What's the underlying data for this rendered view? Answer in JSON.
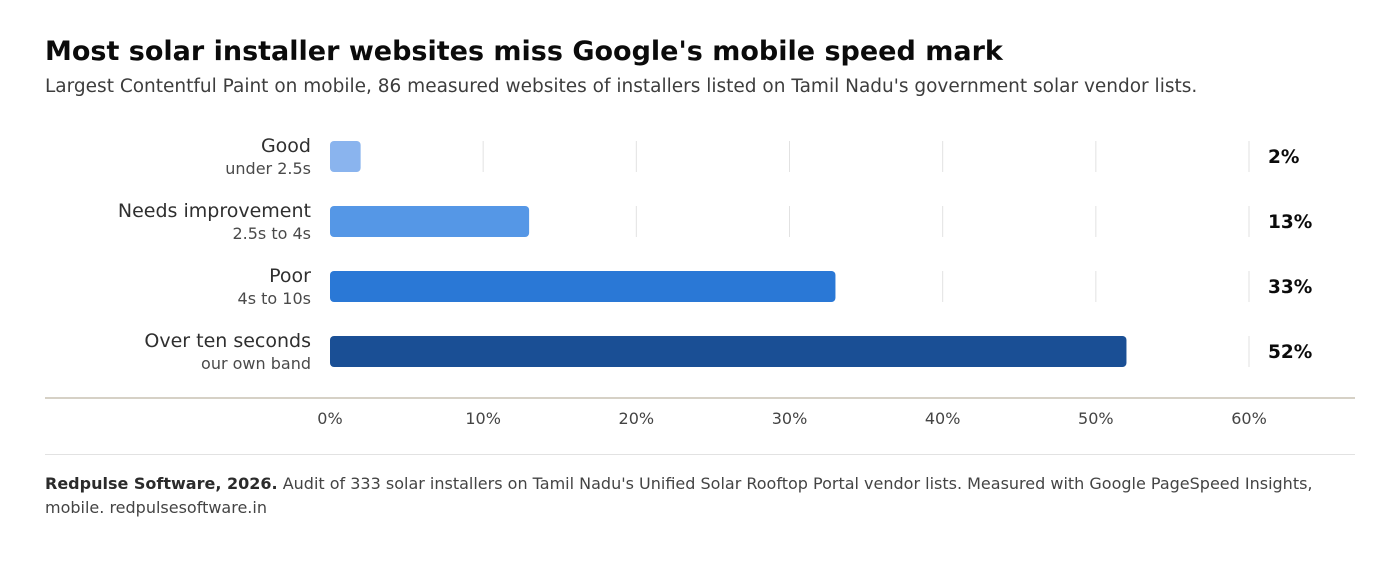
{
  "header": {
    "title": "Most solar installer websites miss Google's mobile speed mark",
    "subtitle": "Largest Contentful Paint on mobile, 86 measured websites of installers listed on Tamil Nadu's government solar vendor lists."
  },
  "chart_data": {
    "type": "bar",
    "orientation": "horizontal",
    "categories": [
      "Good",
      "Needs improvement",
      "Poor",
      "Over ten seconds"
    ],
    "category_notes": [
      "under 2.5s",
      "2.5s to 4s",
      "4s to 10s",
      "our own band"
    ],
    "values": [
      2,
      13,
      33,
      52
    ],
    "value_labels": [
      "2%",
      "13%",
      "33%",
      "52%"
    ],
    "xlim": [
      0,
      60
    ],
    "x_ticks": [
      "0%",
      "10%",
      "20%",
      "30%",
      "40%",
      "50%",
      "60%"
    ],
    "x_tick_values": [
      0,
      10,
      20,
      30,
      40,
      50,
      60
    ],
    "colors": [
      "#8ab4ee",
      "#5597e6",
      "#2a78d6",
      "#1a4f95"
    ],
    "grid": true
  },
  "footer": {
    "source": "Redpulse Software, 2026.",
    "note": " Audit of 333 solar installers on Tamil Nadu's Unified Solar Rooftop Portal vendor lists. Measured with Google PageSpeed Insights, mobile. redpulsesoftware.in"
  }
}
